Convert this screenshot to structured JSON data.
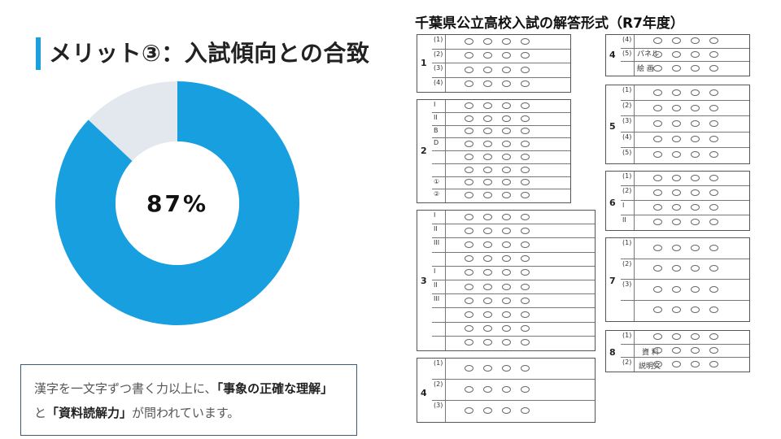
{
  "heading": "メリット③：入試傾向との合致",
  "donut": {
    "label": "87%",
    "value_percent": 87,
    "colors": {
      "primary": "#189fe0",
      "rest": "#e3e8ef",
      "hole": "#ffffff"
    }
  },
  "note": {
    "part1": "漢字を一文字ずつ書く力以上に、",
    "bold1": "「事象の正確な理解」",
    "part2": "と",
    "bold2": "「資料読解力」",
    "part3": "が問われています。"
  },
  "sheet": {
    "title": "千葉県公立高校入試の解答形式（R7年度）",
    "q4_panel_label": "パネル",
    "q4_picture_label": "絵 画",
    "q8_data_label": "資 料",
    "q8_explain_label": "説明文"
  },
  "colors": {
    "accent": "#1aa0dc",
    "note_border": "#3c5a78"
  }
}
